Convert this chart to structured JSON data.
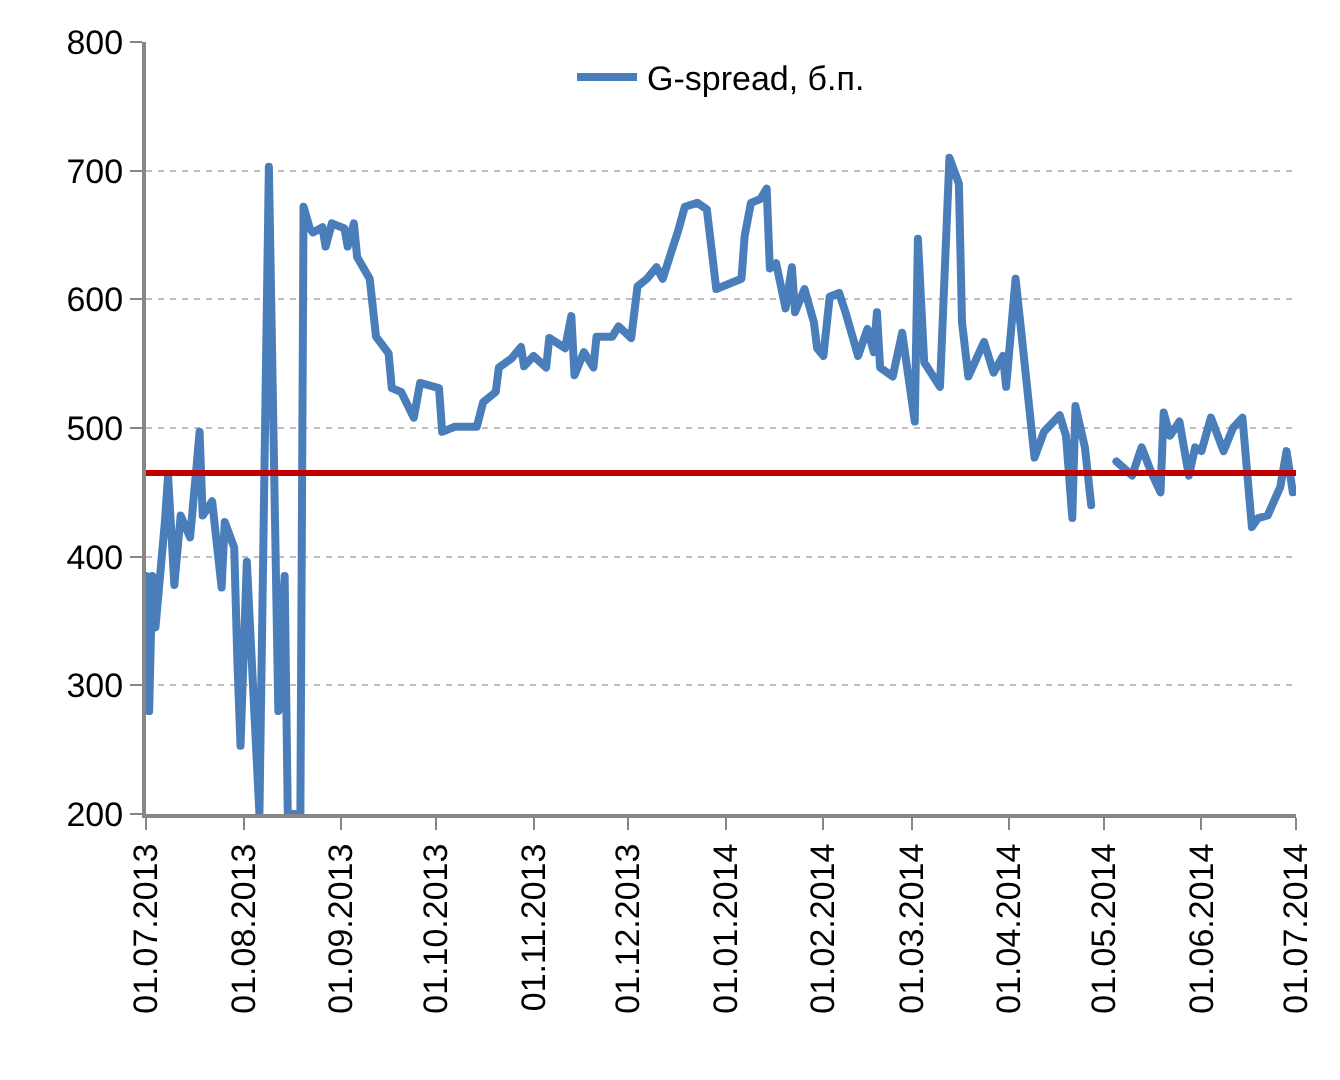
{
  "chart_data": {
    "type": "line",
    "series": [
      {
        "name": "G-spread, б.п.",
        "color": "#4a7ebb",
        "x": [
          "2013-07-01",
          "2013-07-02",
          "2013-07-03",
          "2013-07-04",
          "2013-07-07",
          "2013-07-08",
          "2013-07-10",
          "2013-07-12",
          "2013-07-15",
          "2013-07-17",
          "2013-07-18",
          "2013-07-19",
          "2013-07-22",
          "2013-07-25",
          "2013-07-26",
          "2013-07-29",
          "2013-07-30",
          "2013-07-31",
          "2013-08-02",
          "2013-08-06",
          "2013-08-09",
          "2013-08-12",
          "2013-08-14",
          "2013-08-15",
          "2013-08-19",
          "2013-08-20",
          "2013-08-22",
          "2013-08-23",
          "2013-08-26",
          "2013-08-27",
          "2013-08-29",
          "2013-09-02",
          "2013-09-03",
          "2013-09-05",
          "2013-09-06",
          "2013-09-10",
          "2013-09-12",
          "2013-09-16",
          "2013-09-17",
          "2013-09-20",
          "2013-09-24",
          "2013-09-26",
          "2013-10-02",
          "2013-10-03",
          "2013-10-07",
          "2013-10-14",
          "2013-10-16",
          "2013-10-20",
          "2013-10-21",
          "2013-10-25",
          "2013-10-28",
          "2013-10-29",
          "2013-11-01",
          "2013-11-05",
          "2013-11-06",
          "2013-11-11",
          "2013-11-13",
          "2013-11-14",
          "2013-11-17",
          "2013-11-20",
          "2013-11-21",
          "2013-11-26",
          "2013-11-28",
          "2013-12-02",
          "2013-12-04",
          "2013-12-07",
          "2013-12-10",
          "2013-12-12",
          "2013-12-15",
          "2013-12-17",
          "2013-12-19",
          "2013-12-23",
          "2013-12-26",
          "2013-12-29",
          "2014-01-06",
          "2014-01-07",
          "2014-01-09",
          "2014-01-12",
          "2014-01-14",
          "2014-01-15",
          "2014-01-17",
          "2014-01-20",
          "2014-01-22",
          "2014-01-23",
          "2014-01-26",
          "2014-01-29",
          "2014-01-30",
          "2014-02-01",
          "2014-02-03",
          "2014-02-06",
          "2014-02-08",
          "2014-02-12",
          "2014-02-15",
          "2014-02-17",
          "2014-02-18",
          "2014-02-19",
          "2014-02-23",
          "2014-02-26",
          "2014-03-02",
          "2014-03-03",
          "2014-03-05",
          "2014-03-10",
          "2014-03-13",
          "2014-03-16",
          "2014-03-17",
          "2014-03-19",
          "2014-03-24",
          "2014-03-27",
          "2014-03-30",
          "2014-03-31",
          "2014-04-03",
          "2014-04-06",
          "2014-04-09",
          "2014-04-12",
          "2014-04-17",
          "2014-04-19",
          "2014-04-21",
          "2014-04-22",
          "2014-04-25",
          "2014-04-27",
          "2014-04-30",
          "2014-05-05",
          "2014-05-10",
          "2014-05-13",
          "2014-05-16",
          "2014-05-19",
          "2014-05-20",
          "2014-05-22",
          "2014-05-25",
          "2014-05-28",
          "2014-05-30",
          "2014-06-01",
          "2014-06-04",
          "2014-06-08",
          "2014-06-11",
          "2014-06-14",
          "2014-06-17",
          "2014-06-19",
          "2014-06-22",
          "2014-06-26",
          "2014-06-28",
          "2014-06-30"
        ],
        "values": [
          385,
          280,
          385,
          345,
          427,
          463,
          378,
          432,
          415,
          469,
          497,
          432,
          443,
          376,
          427,
          407,
          319,
          253,
          396,
          200,
          703,
          280,
          385,
          200,
          200,
          672,
          655,
          652,
          656,
          641,
          659,
          655,
          641,
          659,
          633,
          616,
          571,
          558,
          531,
          528,
          508,
          535,
          531,
          497,
          501,
          501,
          520,
          528,
          547,
          554,
          563,
          548,
          556,
          547,
          570,
          562,
          587,
          541,
          559,
          547,
          571,
          571,
          579,
          570,
          610,
          616,
          625,
          616,
          639,
          654,
          672,
          675,
          670,
          608,
          616,
          649,
          675,
          678,
          686,
          624,
          628,
          593,
          625,
          590,
          608,
          582,
          562,
          556,
          602,
          605,
          590,
          556,
          577,
          559,
          590,
          547,
          540,
          574,
          505,
          647,
          551,
          532,
          710,
          690,
          582,
          540,
          567,
          543,
          556,
          532,
          616,
          547,
          477,
          497,
          510,
          494,
          430,
          517,
          485,
          440,
          null,
          474,
          463,
          485,
          466,
          450,
          512,
          494,
          505,
          463,
          485,
          482,
          508,
          482,
          500,
          508,
          423,
          430,
          432,
          454,
          482,
          450
        ]
      }
    ],
    "xlim": [
      "2013-07-01",
      "2014-07-01"
    ],
    "xticks": [
      {
        "value": "2013-07-01",
        "label": "01.07.2013"
      },
      {
        "value": "2013-08-01",
        "label": "01.08.2013"
      },
      {
        "value": "2013-09-01",
        "label": "01.09.2013"
      },
      {
        "value": "2013-10-01",
        "label": "01.10.2013"
      },
      {
        "value": "2013-11-01",
        "label": "01.11.2013"
      },
      {
        "value": "2013-12-01",
        "label": "01.12.2013"
      },
      {
        "value": "2014-01-01",
        "label": "01.01.2014"
      },
      {
        "value": "2014-02-01",
        "label": "01.02.2014"
      },
      {
        "value": "2014-03-01",
        "label": "01.03.2014"
      },
      {
        "value": "2014-04-01",
        "label": "01.04.2014"
      },
      {
        "value": "2014-05-01",
        "label": "01.05.2014"
      },
      {
        "value": "2014-06-01",
        "label": "01.06.2014"
      },
      {
        "value": "2014-07-01",
        "label": "01.07.2014"
      }
    ],
    "ylim": [
      200,
      800
    ],
    "yticks": [
      200,
      300,
      400,
      500,
      600,
      700,
      800
    ],
    "ref_lines": [
      {
        "axis": "y",
        "value": 465,
        "color": "#c00000"
      }
    ],
    "grid": "y",
    "legend": "top",
    "marker": "none",
    "line_style": "solid"
  }
}
